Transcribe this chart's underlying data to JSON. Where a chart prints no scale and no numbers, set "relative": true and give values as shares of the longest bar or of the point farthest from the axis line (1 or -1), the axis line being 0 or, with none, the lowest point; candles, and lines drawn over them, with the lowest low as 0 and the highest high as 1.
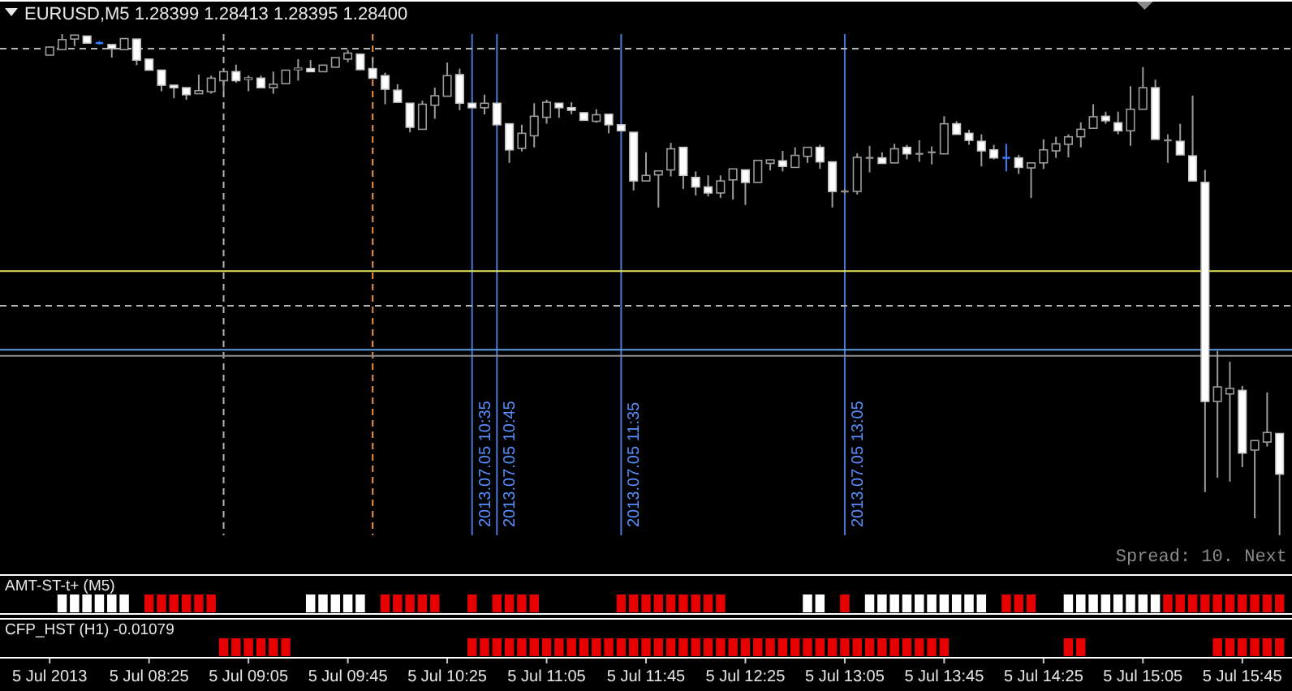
{
  "chart_data": [
    {
      "type": "candlestick",
      "title": "EURUSD,M5 1.28399 1.28413 1.28395 1.28400",
      "relative": true,
      "tick_labels": false,
      "xlim": [
        "2013-07-05T07:25",
        "2013-07-05T16:05"
      ],
      "x": [
        "2013-07-05T07:45",
        "2013-07-05T07:50",
        "2013-07-05T07:55",
        "2013-07-05T08:00",
        "2013-07-05T08:05",
        "2013-07-05T08:10",
        "2013-07-05T08:15",
        "2013-07-05T08:20",
        "2013-07-05T08:25",
        "2013-07-05T08:30",
        "2013-07-05T08:35",
        "2013-07-05T08:40",
        "2013-07-05T08:45",
        "2013-07-05T08:50",
        "2013-07-05T08:55",
        "2013-07-05T09:00",
        "2013-07-05T09:05",
        "2013-07-05T09:10",
        "2013-07-05T09:15",
        "2013-07-05T09:20",
        "2013-07-05T09:25",
        "2013-07-05T09:30",
        "2013-07-05T09:35",
        "2013-07-05T09:40",
        "2013-07-05T09:45",
        "2013-07-05T09:50",
        "2013-07-05T09:55",
        "2013-07-05T10:00",
        "2013-07-05T10:05",
        "2013-07-05T10:10",
        "2013-07-05T10:15",
        "2013-07-05T10:20",
        "2013-07-05T10:25",
        "2013-07-05T10:30",
        "2013-07-05T10:35",
        "2013-07-05T10:40",
        "2013-07-05T10:45",
        "2013-07-05T10:50",
        "2013-07-05T10:55",
        "2013-07-05T11:00",
        "2013-07-05T11:05",
        "2013-07-05T11:10",
        "2013-07-05T11:15",
        "2013-07-05T11:20",
        "2013-07-05T11:25",
        "2013-07-05T11:30",
        "2013-07-05T11:35",
        "2013-07-05T11:40",
        "2013-07-05T11:45",
        "2013-07-05T11:50",
        "2013-07-05T11:55",
        "2013-07-05T12:00",
        "2013-07-05T12:05",
        "2013-07-05T12:10",
        "2013-07-05T12:15",
        "2013-07-05T12:20",
        "2013-07-05T12:25",
        "2013-07-05T12:30",
        "2013-07-05T12:35",
        "2013-07-05T12:40",
        "2013-07-05T12:45",
        "2013-07-05T12:50",
        "2013-07-05T12:55",
        "2013-07-05T13:00",
        "2013-07-05T13:05",
        "2013-07-05T13:10",
        "2013-07-05T13:15",
        "2013-07-05T13:20",
        "2013-07-05T13:25",
        "2013-07-05T13:30",
        "2013-07-05T13:35",
        "2013-07-05T13:40",
        "2013-07-05T13:45",
        "2013-07-05T13:50",
        "2013-07-05T13:55",
        "2013-07-05T14:00",
        "2013-07-05T14:05",
        "2013-07-05T14:10",
        "2013-07-05T14:15",
        "2013-07-05T14:20",
        "2013-07-05T14:25",
        "2013-07-05T14:30",
        "2013-07-05T14:35",
        "2013-07-05T14:40",
        "2013-07-05T14:45",
        "2013-07-05T14:50",
        "2013-07-05T14:55",
        "2013-07-05T15:00",
        "2013-07-05T15:05",
        "2013-07-05T15:10",
        "2013-07-05T15:15",
        "2013-07-05T15:20",
        "2013-07-05T15:25",
        "2013-07-05T15:30",
        "2013-07-05T15:35",
        "2013-07-05T15:40",
        "2013-07-05T15:45",
        "2013-07-05T15:50",
        "2013-07-05T15:55",
        "2013-07-05T16:00"
      ],
      "ohlc": [
        [
          0.958,
          0.974,
          0.958,
          0.974
        ],
        [
          0.969,
          1.0,
          0.969,
          0.989
        ],
        [
          0.99,
          0.998,
          0.976,
          0.998
        ],
        [
          0.996,
          0.996,
          0.982,
          0.982
        ],
        [
          0.982,
          0.986,
          0.979,
          0.982
        ],
        [
          0.979,
          0.979,
          0.953,
          0.971
        ],
        [
          0.969,
          0.991,
          0.969,
          0.991
        ],
        [
          0.99,
          0.99,
          0.938,
          0.948
        ],
        [
          0.95,
          0.95,
          0.928,
          0.928
        ],
        [
          0.928,
          0.928,
          0.886,
          0.898
        ],
        [
          0.898,
          0.898,
          0.872,
          0.893
        ],
        [
          0.893,
          0.893,
          0.869,
          0.879
        ],
        [
          0.881,
          0.919,
          0.881,
          0.887
        ],
        [
          0.885,
          0.917,
          0.881,
          0.912
        ],
        [
          0.907,
          0.925,
          0.886,
          0.925
        ],
        [
          0.925,
          0.939,
          0.903,
          0.907
        ],
        [
          0.91,
          0.917,
          0.886,
          0.912
        ],
        [
          0.912,
          0.917,
          0.893,
          0.893
        ],
        [
          0.893,
          0.925,
          0.881,
          0.9
        ],
        [
          0.901,
          0.928,
          0.901,
          0.928
        ],
        [
          0.93,
          0.95,
          0.907,
          0.931
        ],
        [
          0.931,
          0.948,
          0.925,
          0.925
        ],
        [
          0.925,
          0.938,
          0.925,
          0.938
        ],
        [
          0.934,
          0.953,
          0.934,
          0.953
        ],
        [
          0.95,
          0.968,
          0.944,
          0.962
        ],
        [
          0.96,
          0.96,
          0.929,
          0.929
        ],
        [
          0.931,
          0.953,
          0.912,
          0.912
        ],
        [
          0.917,
          0.923,
          0.86,
          0.89
        ],
        [
          0.888,
          0.9,
          0.864,
          0.864
        ],
        [
          0.862,
          0.862,
          0.804,
          0.814
        ],
        [
          0.81,
          0.867,
          0.81,
          0.86
        ],
        [
          0.858,
          0.893,
          0.831,
          0.877
        ],
        [
          0.876,
          0.943,
          0.876,
          0.917
        ],
        [
          0.919,
          0.931,
          0.848,
          0.862
        ],
        [
          0.862,
          0.862,
          0.853,
          0.853
        ],
        [
          0.853,
          0.879,
          0.84,
          0.862
        ],
        [
          0.862,
          0.862,
          0.819,
          0.819
        ],
        [
          0.821,
          0.821,
          0.743,
          0.769
        ],
        [
          0.772,
          0.819,
          0.766,
          0.802
        ],
        [
          0.797,
          0.862,
          0.774,
          0.836
        ],
        [
          0.834,
          0.869,
          0.821,
          0.864
        ],
        [
          0.862,
          0.862,
          0.833,
          0.853
        ],
        [
          0.853,
          0.864,
          0.84,
          0.848
        ],
        [
          0.843,
          0.843,
          0.828,
          0.828
        ],
        [
          0.826,
          0.85,
          0.823,
          0.839
        ],
        [
          0.84,
          0.84,
          0.802,
          0.819
        ],
        [
          0.819,
          0.819,
          0.807,
          0.807
        ],
        [
          0.804,
          0.804,
          0.688,
          0.707
        ],
        [
          0.707,
          0.764,
          0.707,
          0.718
        ],
        [
          0.719,
          0.727,
          0.654,
          0.727
        ],
        [
          0.729,
          0.783,
          0.716,
          0.771
        ],
        [
          0.774,
          0.774,
          0.691,
          0.718
        ],
        [
          0.714,
          0.726,
          0.678,
          0.695
        ],
        [
          0.695,
          0.718,
          0.676,
          0.683
        ],
        [
          0.683,
          0.718,
          0.673,
          0.707
        ],
        [
          0.709,
          0.731,
          0.67,
          0.731
        ],
        [
          0.729,
          0.729,
          0.659,
          0.704
        ],
        [
          0.704,
          0.748,
          0.704,
          0.748
        ],
        [
          0.742,
          0.749,
          0.728,
          0.749
        ],
        [
          0.747,
          0.767,
          0.726,
          0.736
        ],
        [
          0.734,
          0.774,
          0.734,
          0.758
        ],
        [
          0.756,
          0.774,
          0.743,
          0.774
        ],
        [
          0.774,
          0.779,
          0.731,
          0.745
        ],
        [
          0.745,
          0.745,
          0.654,
          0.686
        ],
        [
          0.686,
          0.691,
          0.682,
          0.686
        ],
        [
          0.686,
          0.762,
          0.68,
          0.754
        ],
        [
          0.753,
          0.777,
          0.724,
          0.753
        ],
        [
          0.753,
          0.764,
          0.742,
          0.742
        ],
        [
          0.743,
          0.781,
          0.743,
          0.771
        ],
        [
          0.774,
          0.779,
          0.75,
          0.761
        ],
        [
          0.761,
          0.788,
          0.745,
          0.761
        ],
        [
          0.764,
          0.776,
          0.74,
          0.764
        ],
        [
          0.761,
          0.836,
          0.761,
          0.821
        ],
        [
          0.821,
          0.826,
          0.8,
          0.8
        ],
        [
          0.802,
          0.809,
          0.779,
          0.788
        ],
        [
          0.786,
          0.8,
          0.736,
          0.767
        ],
        [
          0.769,
          0.779,
          0.75,
          0.753
        ],
        [
          0.753,
          0.781,
          0.726,
          0.753
        ],
        [
          0.753,
          0.759,
          0.721,
          0.734
        ],
        [
          0.733,
          0.743,
          0.673,
          0.743
        ],
        [
          0.743,
          0.79,
          0.731,
          0.769
        ],
        [
          0.767,
          0.795,
          0.753,
          0.781
        ],
        [
          0.78,
          0.8,
          0.754,
          0.795
        ],
        [
          0.795,
          0.824,
          0.774,
          0.81
        ],
        [
          0.812,
          0.86,
          0.812,
          0.835
        ],
        [
          0.836,
          0.845,
          0.821,
          0.827
        ],
        [
          0.823,
          0.845,
          0.8,
          0.807
        ],
        [
          0.807,
          0.896,
          0.777,
          0.85
        ],
        [
          0.85,
          0.934,
          0.85,
          0.893
        ],
        [
          0.893,
          0.909,
          0.79,
          0.79
        ],
        [
          0.788,
          0.8,
          0.743,
          0.788
        ],
        [
          0.786,
          0.821,
          0.759,
          0.759
        ],
        [
          0.757,
          0.877,
          0.707,
          0.707
        ],
        [
          0.704,
          0.729,
          0.086,
          0.267
        ],
        [
          0.267,
          0.368,
          0.115,
          0.296
        ],
        [
          0.282,
          0.346,
          0.107,
          0.293
        ],
        [
          0.289,
          0.298,
          0.136,
          0.164
        ],
        [
          0.17,
          0.189,
          0.034,
          0.189
        ],
        [
          0.186,
          0.285,
          0.177,
          0.205
        ],
        [
          0.203,
          0.203,
          0,
          0.122
        ]
      ],
      "colors": [
        "#000000",
        "#000000",
        "#000000",
        "#ffffff",
        "#3c7dff",
        "#ffffff",
        "#000000",
        "#ffffff",
        "#ffffff",
        "#ffffff",
        "#ffffff",
        "#ffffff",
        "#000000",
        "#000000",
        "#000000",
        "#ffffff",
        "#000000",
        "#ffffff",
        "#000000",
        "#000000",
        "#000000",
        "#ffffff",
        "#000000",
        "#000000",
        "#000000",
        "#ffffff",
        "#ffffff",
        "#ffffff",
        "#ffffff",
        "#ffffff",
        "#000000",
        "#000000",
        "#000000",
        "#ffffff",
        "#ffffff",
        "#000000",
        "#ffffff",
        "#ffffff",
        "#000000",
        "#000000",
        "#000000",
        "#ffffff",
        "#ffffff",
        "#ffffff",
        "#000000",
        "#ffffff",
        "#ffffff",
        "#ffffff",
        "#000000",
        "#000000",
        "#000000",
        "#ffffff",
        "#ffffff",
        "#ffffff",
        "#000000",
        "#000000",
        "#ffffff",
        "#000000",
        "#000000",
        "#ffffff",
        "#000000",
        "#000000",
        "#ffffff",
        "#ffffff",
        "#909090",
        "#000000",
        "#909090",
        "#ffffff",
        "#000000",
        "#ffffff",
        "#909090",
        "#909090",
        "#000000",
        "#ffffff",
        "#ffffff",
        "#ffffff",
        "#ffffff",
        "#3c7dff",
        "#ffffff",
        "#000000",
        "#000000",
        "#000000",
        "#000000",
        "#000000",
        "#000000",
        "#ffffff",
        "#ffffff",
        "#000000",
        "#000000",
        "#ffffff",
        "#909090",
        "#ffffff",
        "#ffffff",
        "#ffffff",
        "#000000",
        "#000000",
        "#ffffff",
        "#000000",
        "#000000",
        "#ffffff"
      ],
      "ref_lines": [
        {
          "axis": "x",
          "value": "2013-07-05T08:55",
          "color": "#b4b4b4",
          "line_style": "dashed"
        },
        {
          "axis": "x",
          "value": "2013-07-05T09:55",
          "color": "#e8964a",
          "line_style": "dashed"
        },
        {
          "axis": "x",
          "value": "2013-07-05T10:35",
          "label": "2013.07.05 10:35",
          "color": "#4a78d6"
        },
        {
          "axis": "x",
          "value": "2013-07-05T10:45",
          "label": "2013.07.05 10:45",
          "color": "#4a78d6"
        },
        {
          "axis": "x",
          "value": "2013-07-05T11:35",
          "label": "2013.07.05 11:35",
          "color": "#4a78d6"
        },
        {
          "axis": "x",
          "value": "2013-07-05T13:05",
          "label": "2013.07.05 13:05",
          "color": "#4a78d6"
        },
        {
          "axis": "y",
          "value": 0.971,
          "color": "#b4b4b4",
          "line_style": "dashed"
        },
        {
          "axis": "y",
          "value": 0.527,
          "color": "#e6e65a"
        },
        {
          "axis": "y",
          "value": 0.458,
          "color": "#b4b4b4",
          "line_style": "dashed"
        },
        {
          "axis": "y",
          "value": 0.37,
          "color": "#5aa0e6"
        },
        {
          "axis": "y",
          "value": 0.358,
          "color": "#8c8c8c"
        }
      ],
      "annotations": [
        "Spread: 10. Next"
      ]
    },
    {
      "type": "bar",
      "title": "AMT-ST-t+ (M5)",
      "relative": true,
      "tick_labels": false,
      "xlim": [
        "2013-07-05T07:25",
        "2013-07-05T16:05"
      ],
      "x": [
        "2013-07-05T07:50",
        "2013-07-05T07:55",
        "2013-07-05T08:00",
        "2013-07-05T08:05",
        "2013-07-05T08:10",
        "2013-07-05T08:15",
        "2013-07-05T08:25",
        "2013-07-05T08:30",
        "2013-07-05T08:35",
        "2013-07-05T08:40",
        "2013-07-05T08:45",
        "2013-07-05T08:50",
        "2013-07-05T09:30",
        "2013-07-05T09:35",
        "2013-07-05T09:40",
        "2013-07-05T09:45",
        "2013-07-05T09:50",
        "2013-07-05T10:00",
        "2013-07-05T10:05",
        "2013-07-05T10:10",
        "2013-07-05T10:15",
        "2013-07-05T10:20",
        "2013-07-05T10:35",
        "2013-07-05T10:45",
        "2013-07-05T10:50",
        "2013-07-05T10:55",
        "2013-07-05T11:00",
        "2013-07-05T11:35",
        "2013-07-05T11:40",
        "2013-07-05T11:45",
        "2013-07-05T11:50",
        "2013-07-05T11:55",
        "2013-07-05T12:00",
        "2013-07-05T12:05",
        "2013-07-05T12:10",
        "2013-07-05T12:15",
        "2013-07-05T12:50",
        "2013-07-05T12:55",
        "2013-07-05T13:05",
        "2013-07-05T13:15",
        "2013-07-05T13:20",
        "2013-07-05T13:25",
        "2013-07-05T13:30",
        "2013-07-05T13:35",
        "2013-07-05T13:40",
        "2013-07-05T13:45",
        "2013-07-05T13:50",
        "2013-07-05T13:55",
        "2013-07-05T14:00",
        "2013-07-05T14:10",
        "2013-07-05T14:15",
        "2013-07-05T14:20",
        "2013-07-05T14:35",
        "2013-07-05T14:40",
        "2013-07-05T14:45",
        "2013-07-05T14:50",
        "2013-07-05T14:55",
        "2013-07-05T15:00",
        "2013-07-05T15:05",
        "2013-07-05T15:10",
        "2013-07-05T15:15",
        "2013-07-05T15:20",
        "2013-07-05T15:25",
        "2013-07-05T15:30",
        "2013-07-05T15:35",
        "2013-07-05T15:40",
        "2013-07-05T15:45",
        "2013-07-05T15:50",
        "2013-07-05T15:55",
        "2013-07-05T16:00"
      ],
      "values": [
        1,
        1,
        1,
        1,
        1,
        1,
        1,
        1,
        1,
        1,
        1,
        1,
        1,
        1,
        1,
        1,
        1,
        1,
        1,
        1,
        1,
        1,
        1,
        1,
        1,
        1,
        1,
        1,
        1,
        1,
        1,
        1,
        1,
        1,
        1,
        1,
        1,
        1,
        1,
        1,
        1,
        1,
        1,
        1,
        1,
        1,
        1,
        1,
        1,
        1,
        1,
        1,
        1,
        1,
        1,
        1,
        1,
        1,
        1,
        1,
        1,
        1,
        1,
        1,
        1,
        1,
        1,
        1,
        1,
        1
      ],
      "colors": [
        "#ffffff",
        "#ffffff",
        "#ffffff",
        "#ffffff",
        "#ffffff",
        "#ffffff",
        "#e60000",
        "#e60000",
        "#e60000",
        "#e60000",
        "#e60000",
        "#e60000",
        "#ffffff",
        "#ffffff",
        "#ffffff",
        "#ffffff",
        "#ffffff",
        "#e60000",
        "#e60000",
        "#e60000",
        "#e60000",
        "#e60000",
        "#e60000",
        "#e60000",
        "#e60000",
        "#e60000",
        "#e60000",
        "#e60000",
        "#e60000",
        "#e60000",
        "#e60000",
        "#e60000",
        "#e60000",
        "#e60000",
        "#e60000",
        "#e60000",
        "#ffffff",
        "#ffffff",
        "#e60000",
        "#ffffff",
        "#ffffff",
        "#ffffff",
        "#ffffff",
        "#ffffff",
        "#ffffff",
        "#ffffff",
        "#ffffff",
        "#ffffff",
        "#ffffff",
        "#e60000",
        "#e60000",
        "#e60000",
        "#ffffff",
        "#ffffff",
        "#ffffff",
        "#ffffff",
        "#ffffff",
        "#ffffff",
        "#ffffff",
        "#ffffff",
        "#e60000",
        "#e60000",
        "#e60000",
        "#e60000",
        "#e60000",
        "#e60000",
        "#e60000",
        "#e60000",
        "#e60000",
        "#e60000"
      ]
    },
    {
      "type": "bar",
      "title": "CFP_HST (H1) -0.01079",
      "relative": true,
      "tick_labels": "x",
      "color": "#e60000",
      "xlim": [
        "2013-07-05T07:25",
        "2013-07-05T16:05"
      ],
      "xticks": [
        {
          "value": "2013-07-05T07:45",
          "label": "5 Jul 2013"
        },
        {
          "value": "2013-07-05T08:25",
          "label": "5 Jul 08:25"
        },
        {
          "value": "2013-07-05T09:05",
          "label": "5 Jul 09:05"
        },
        {
          "value": "2013-07-05T09:45",
          "label": "5 Jul 09:45"
        },
        {
          "value": "2013-07-05T10:25",
          "label": "5 Jul 10:25"
        },
        {
          "value": "2013-07-05T11:05",
          "label": "5 Jul 11:05"
        },
        {
          "value": "2013-07-05T11:45",
          "label": "5 Jul 11:45"
        },
        {
          "value": "2013-07-05T12:25",
          "label": "5 Jul 12:25"
        },
        {
          "value": "2013-07-05T13:05",
          "label": "5 Jul 13:05"
        },
        {
          "value": "2013-07-05T13:45",
          "label": "5 Jul 13:45"
        },
        {
          "value": "2013-07-05T14:25",
          "label": "5 Jul 14:25"
        },
        {
          "value": "2013-07-05T15:05",
          "label": "5 Jul 15:05"
        },
        {
          "value": "2013-07-05T15:45",
          "label": "5 Jul 15:45"
        }
      ],
      "x": [
        "2013-07-05T08:55",
        "2013-07-05T09:00",
        "2013-07-05T09:05",
        "2013-07-05T09:10",
        "2013-07-05T09:15",
        "2013-07-05T09:20",
        "2013-07-05T10:35",
        "2013-07-05T10:40",
        "2013-07-05T10:45",
        "2013-07-05T10:50",
        "2013-07-05T10:55",
        "2013-07-05T11:00",
        "2013-07-05T11:05",
        "2013-07-05T11:10",
        "2013-07-05T11:15",
        "2013-07-05T11:20",
        "2013-07-05T11:25",
        "2013-07-05T11:30",
        "2013-07-05T11:35",
        "2013-07-05T11:40",
        "2013-07-05T11:45",
        "2013-07-05T11:50",
        "2013-07-05T11:55",
        "2013-07-05T12:00",
        "2013-07-05T12:05",
        "2013-07-05T12:10",
        "2013-07-05T12:15",
        "2013-07-05T12:20",
        "2013-07-05T12:25",
        "2013-07-05T12:30",
        "2013-07-05T12:35",
        "2013-07-05T12:40",
        "2013-07-05T12:45",
        "2013-07-05T12:50",
        "2013-07-05T12:55",
        "2013-07-05T13:00",
        "2013-07-05T13:05",
        "2013-07-05T13:10",
        "2013-07-05T13:15",
        "2013-07-05T13:20",
        "2013-07-05T13:25",
        "2013-07-05T13:30",
        "2013-07-05T13:35",
        "2013-07-05T13:40",
        "2013-07-05T13:45",
        "2013-07-05T14:35",
        "2013-07-05T14:40",
        "2013-07-05T15:35",
        "2013-07-05T15:40",
        "2013-07-05T15:45",
        "2013-07-05T15:50",
        "2013-07-05T15:55",
        "2013-07-05T16:00"
      ],
      "values": [
        1,
        1,
        1,
        1,
        1,
        1,
        1,
        1,
        1,
        1,
        1,
        1,
        1,
        1,
        1,
        1,
        1,
        1,
        1,
        1,
        1,
        1,
        1,
        1,
        1,
        1,
        1,
        1,
        1,
        1,
        1,
        1,
        1,
        1,
        1,
        1,
        1,
        1,
        1,
        1,
        1,
        1,
        1,
        1,
        1,
        1,
        1,
        1,
        1,
        1,
        1,
        1,
        1
      ]
    }
  ]
}
